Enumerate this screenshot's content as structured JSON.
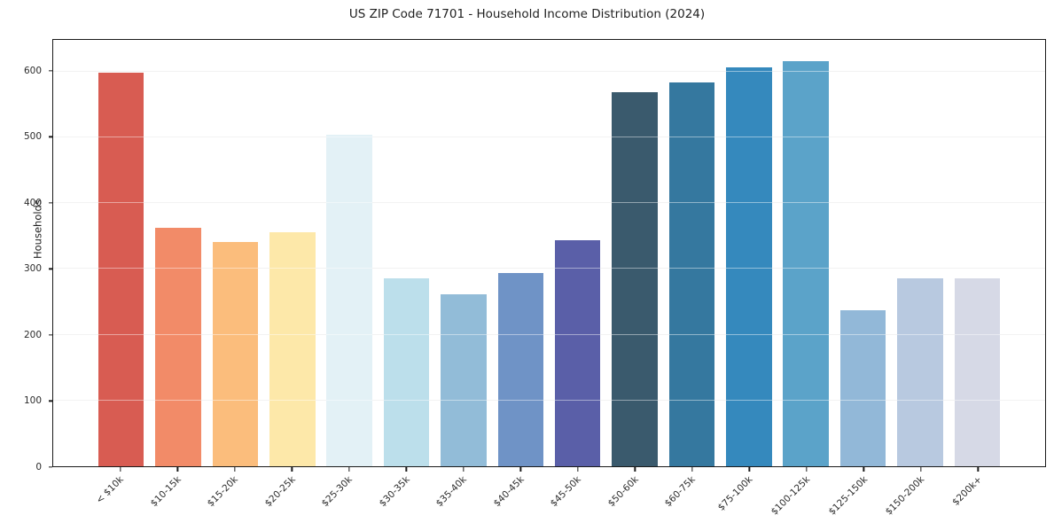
{
  "chart_data": {
    "type": "bar",
    "title": "US ZIP Code 71701 - Household Income Distribution (2024)",
    "xlabel": "",
    "ylabel": "Households",
    "categories": [
      "< $10k",
      "$10-15k",
      "$15-20k",
      "$20-25k",
      "$25-30k",
      "$30-35k",
      "$35-40k",
      "$40-45k",
      "$45-50k",
      "$50-60k",
      "$60-75k",
      "$75-100k",
      "$100-125k",
      "$125-150k",
      "$150-200k",
      "$200k+"
    ],
    "values": [
      598,
      362,
      341,
      356,
      504,
      286,
      262,
      294,
      343,
      569,
      584,
      606,
      616,
      237,
      286,
      285
    ],
    "bar_colors": [
      "#d85c52",
      "#f28b68",
      "#fbbd7c",
      "#fde8a9",
      "#e3f1f6",
      "#bcdfeb",
      "#92bcd8",
      "#6f93c6",
      "#5a5fa8",
      "#3a5a6d",
      "#35789f",
      "#3589bd",
      "#5ba3c9",
      "#92b8d8",
      "#b8c9e0",
      "#d6d9e6"
    ],
    "yticks": [
      0,
      100,
      200,
      300,
      400,
      500,
      600
    ],
    "ylim": [
      0,
      648
    ],
    "grid": "horizontal",
    "legend_position": "none",
    "axis_color": "#1a1a1a",
    "grid_color": "#e8e8e8"
  }
}
